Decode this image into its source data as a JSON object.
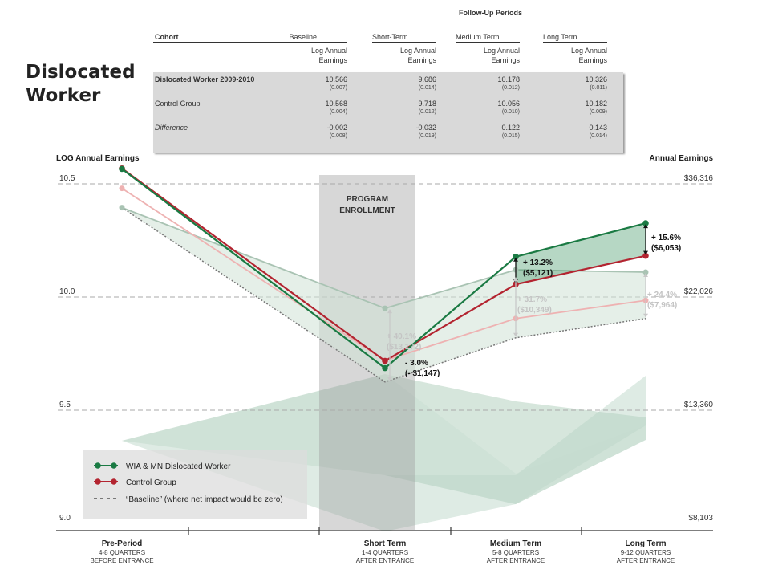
{
  "side_title": [
    "Dislocated",
    "Worker"
  ],
  "table": {
    "followup_title": "Follow-Up Periods",
    "cohort_label": "Cohort",
    "columns": [
      "Baseline",
      "Short-Term",
      "Medium Term",
      "Long Term"
    ],
    "subhead": [
      "Log Annual",
      "Earnings"
    ],
    "rows": [
      {
        "label": "Dislocated Worker 2009-2010",
        "style": "bold-underline",
        "values": [
          "10.566",
          "9.686",
          "10.178",
          "10.326"
        ],
        "se": [
          "(0.007)",
          "(0.014)",
          "(0.012)",
          "(0.011)"
        ]
      },
      {
        "label": "Control Group",
        "style": "normal",
        "values": [
          "10.568",
          "9.718",
          "10.056",
          "10.182"
        ],
        "se": [
          "(0.004)",
          "(0.012)",
          "(0.010)",
          "(0.009)"
        ]
      },
      {
        "label": "Difference",
        "style": "italic",
        "values": [
          "-0.002",
          "-0.032",
          "0.122",
          "0.143"
        ],
        "se": [
          "(0.008)",
          "(0.019)",
          "(0.015)",
          "(0.014)"
        ]
      }
    ]
  },
  "chart_data": {
    "type": "line",
    "ylabel_left": "LOG Annual Earnings",
    "ylabel_right": "Annual Earnings",
    "ylim": [
      9.0,
      10.5
    ],
    "y_ticks_left": [
      "10.5",
      "10.0",
      "9.5",
      "9.0"
    ],
    "y_ticks_right": [
      "$36,316",
      "$22,026",
      "$13,360",
      "$8,103"
    ],
    "y_tick_values": [
      10.5,
      10.0,
      9.5,
      9.0
    ],
    "x_categories": [
      {
        "name": "Pre-Period",
        "sub1": "4-8 QUARTERS",
        "sub2": "BEFORE ENTRANCE"
      },
      {
        "name": "Short Term",
        "sub1": "1-4 QUARTERS",
        "sub2": "AFTER ENTRANCE"
      },
      {
        "name": "Medium Term",
        "sub1": "5-8 QUARTERS",
        "sub2": "AFTER ENTRANCE"
      },
      {
        "name": "Long Term",
        "sub1": "9-12 QUARTERS",
        "sub2": "AFTER ENTRANCE"
      }
    ],
    "enrollment_label": [
      "PROGRAM",
      "ENROLLMENT"
    ],
    "series": [
      {
        "name": "WIA & MN Dislocated Worker",
        "color": "#1a7a43",
        "values": [
          10.566,
          9.686,
          10.178,
          10.326
        ]
      },
      {
        "name": "Control Group",
        "color": "#b32430",
        "values": [
          10.568,
          9.718,
          10.056,
          10.182
        ]
      },
      {
        "name": "“Baseline” (where net impact would be zero)",
        "color": "#777777",
        "style": "dotted",
        "values": [
          10.395,
          9.625,
          9.82,
          9.905
        ]
      }
    ],
    "faded_series": [
      {
        "color": "#a9c3b3",
        "values": [
          10.395,
          9.95,
          10.12,
          10.11
        ]
      },
      {
        "color": "#eeb2b2",
        "values": [
          10.48,
          9.72,
          9.905,
          9.985
        ]
      }
    ],
    "annotations": [
      {
        "lines": [
          "- 3.0%",
          "(- $1,147)"
        ],
        "faded": false
      },
      {
        "lines": [
          "+ 13.2%",
          "($5,121)"
        ],
        "faded": false
      },
      {
        "lines": [
          "+ 15.6%",
          "($6,053)"
        ],
        "faded": false
      },
      {
        "lines": [
          "+ 40.1%",
          "($13,1?2)"
        ],
        "faded": true
      },
      {
        "lines": [
          "+ 31.7%",
          "($10,349)"
        ],
        "faded": true
      },
      {
        "lines": [
          "+ 24.4%",
          "($7,964)"
        ],
        "faded": true
      }
    ],
    "legend_placement": "bottom-left",
    "grid": "dashed horizontal"
  }
}
